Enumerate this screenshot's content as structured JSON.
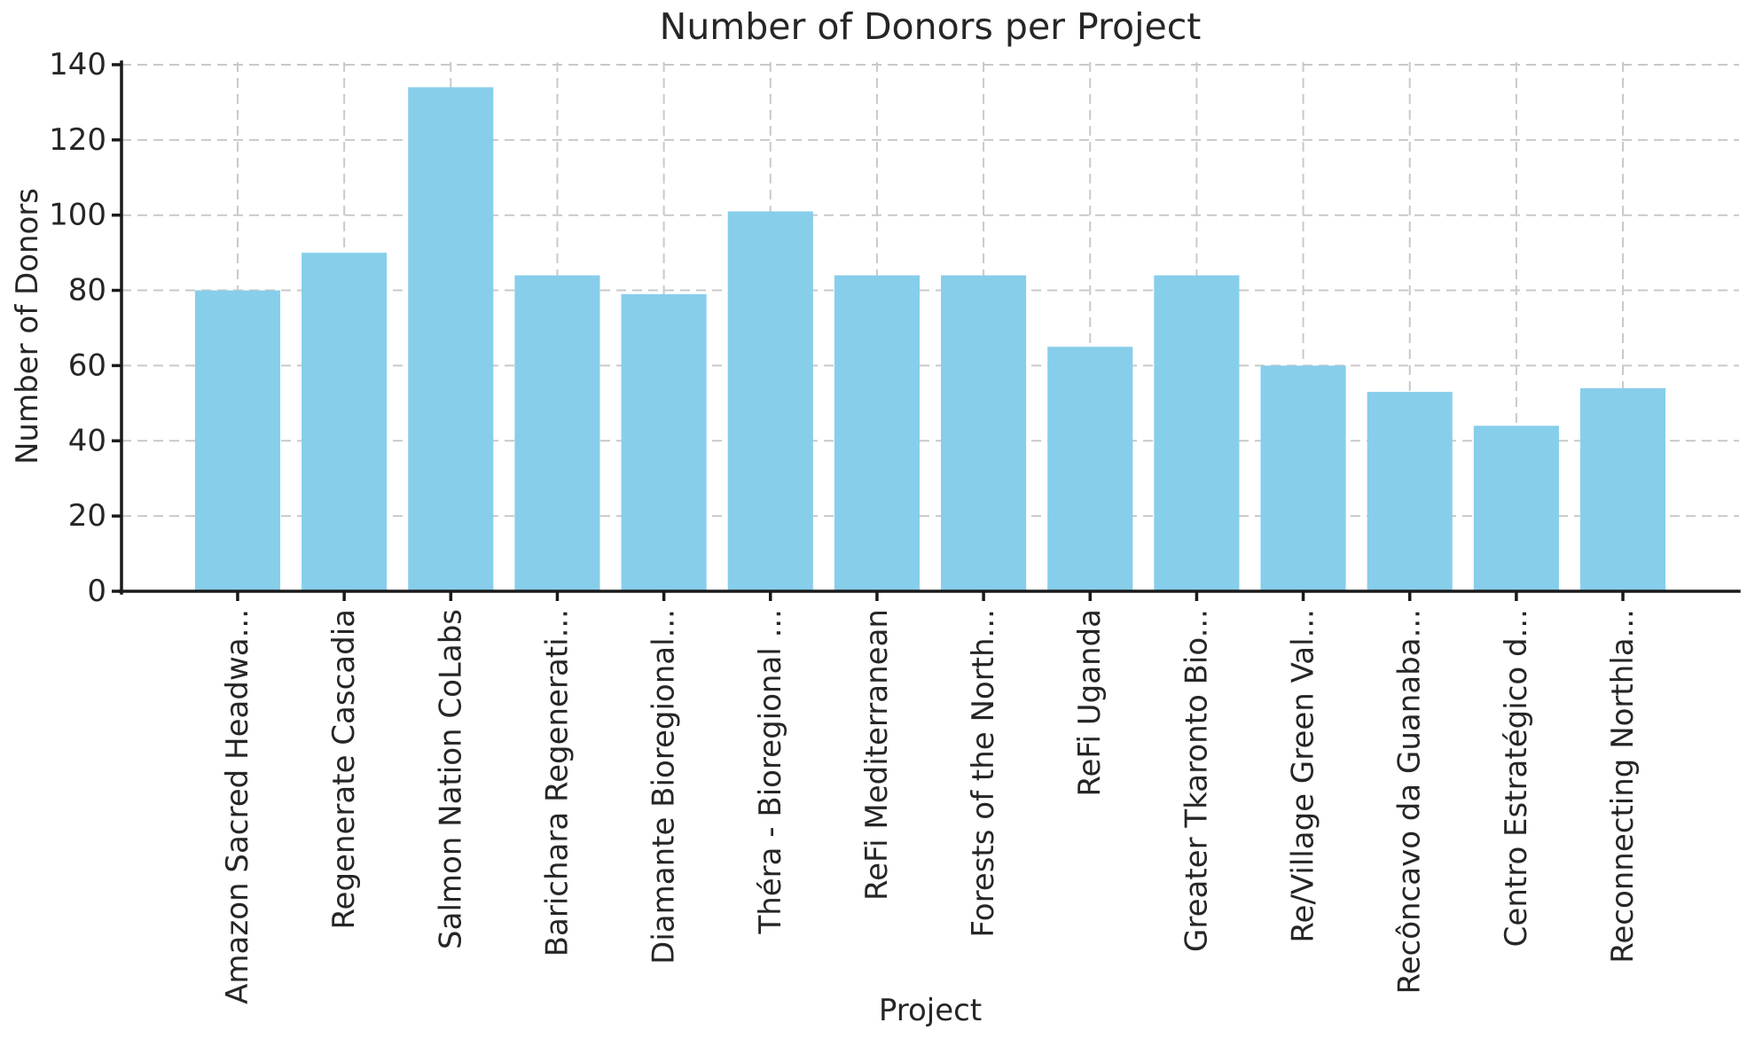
{
  "figure": {
    "background_color": "#ffffff"
  },
  "chart_data": {
    "type": "bar",
    "title": "Number of Donors per Project",
    "xlabel": "Project",
    "ylabel": "Number of Donors",
    "categories": [
      "Amazon Sacred Headwa...",
      "Regenerate Cascadia",
      "Salmon Nation CoLabs",
      "Barichara Regenerati...",
      "Diamante Bioregional...",
      "Théra - Bioregional ...",
      "ReFi Mediterranean",
      "Forests of the North...",
      "ReFi Uganda",
      "Greater Tkaronto Bio...",
      "Re/Village Green Val...",
      "Recôncavo da Guanaba...",
      "Centro Estratégico d...",
      "Reconnecting Northla..."
    ],
    "values": [
      80,
      90,
      134,
      84,
      79,
      101,
      84,
      84,
      65,
      84,
      60,
      53,
      44,
      54
    ],
    "yticks": [
      0,
      20,
      40,
      60,
      80,
      100,
      120,
      140
    ],
    "ylim": [
      0,
      140
    ],
    "x_tick_rotation_deg": 90,
    "grid": true,
    "grid_style": "dashed",
    "legend": null,
    "bar_color": "#87CEEB",
    "grid_color": "#c9c9c9",
    "axis_color": "#1a1a1a",
    "text_color": "#262626"
  }
}
